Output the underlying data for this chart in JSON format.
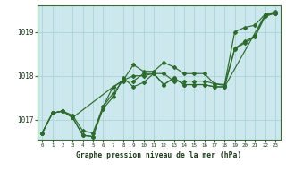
{
  "title": "Graphe pression niveau de la mer (hPa)",
  "bg_color": "#cce8ec",
  "fig_color": "#ffffff",
  "grid_color": "#aad4d8",
  "line_color": "#2d6a2d",
  "xlim": [
    -0.5,
    23.5
  ],
  "ylim": [
    1016.55,
    1019.6
  ],
  "yticks": [
    1017,
    1018,
    1019
  ],
  "xticks": [
    0,
    1,
    2,
    3,
    4,
    5,
    6,
    7,
    8,
    9,
    10,
    11,
    12,
    13,
    14,
    15,
    16,
    17,
    18,
    19,
    20,
    21,
    22,
    23
  ],
  "series": [
    {
      "x": [
        0,
        1,
        2,
        3,
        4,
        5,
        6,
        7,
        8,
        9,
        10,
        11,
        12,
        13,
        14,
        15,
        16,
        17,
        18,
        19,
        20,
        21,
        22,
        23
      ],
      "y": [
        1016.7,
        1017.15,
        1017.2,
        1017.1,
        1016.75,
        1016.7,
        1017.3,
        1017.6,
        1017.9,
        1018.25,
        1018.1,
        1018.1,
        1018.3,
        1018.2,
        1018.05,
        1018.05,
        1018.05,
        1017.82,
        1017.8,
        1019.0,
        1019.1,
        1019.15,
        1019.4,
        1019.45
      ]
    },
    {
      "x": [
        0,
        1,
        2,
        3,
        4,
        5,
        6,
        7,
        8,
        9,
        10,
        11,
        12,
        13,
        14,
        15,
        16,
        17,
        18,
        22,
        23
      ],
      "y": [
        1016.7,
        1017.15,
        1017.2,
        1017.05,
        1016.65,
        1016.62,
        1017.25,
        1017.52,
        1017.95,
        1017.75,
        1017.85,
        1018.05,
        1017.8,
        1017.95,
        1017.8,
        1017.8,
        1017.8,
        1017.75,
        1017.75,
        1019.38,
        1019.42
      ]
    },
    {
      "x": [
        0,
        1,
        2,
        3,
        4,
        5,
        6,
        7,
        8,
        9,
        10,
        11,
        12,
        13,
        14,
        15,
        16,
        17,
        18,
        19,
        20,
        21,
        22,
        23
      ],
      "y": [
        1016.7,
        1017.15,
        1017.2,
        1017.05,
        1016.65,
        1016.62,
        1017.3,
        1017.75,
        1017.9,
        1018.0,
        1018.0,
        1018.05,
        1017.8,
        1017.95,
        1017.8,
        1017.8,
        1017.8,
        1017.75,
        1017.75,
        1018.6,
        1018.75,
        1018.88,
        1019.35,
        1019.42
      ]
    },
    {
      "x": [
        0,
        1,
        2,
        3,
        7,
        8,
        9,
        10,
        11,
        12,
        13,
        14,
        15,
        16,
        17,
        18,
        19,
        20,
        21,
        22,
        23
      ],
      "y": [
        1016.7,
        1017.15,
        1017.2,
        1017.05,
        1017.75,
        1017.88,
        1017.88,
        1018.05,
        1018.05,
        1018.05,
        1017.88,
        1017.88,
        1017.88,
        1017.88,
        1017.82,
        1017.78,
        1018.62,
        1018.78,
        1018.9,
        1019.38,
        1019.42
      ]
    }
  ]
}
